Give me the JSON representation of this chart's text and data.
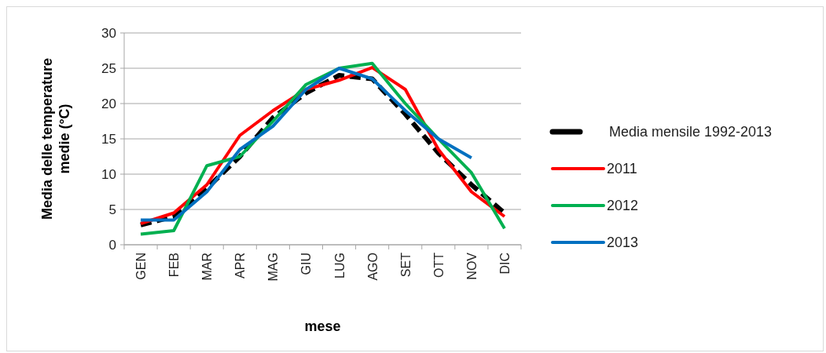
{
  "chart_data": {
    "type": "line",
    "xlabel": "mese",
    "ylabel": "Media delle temperature medie (°C)",
    "categories": [
      "GEN",
      "FEB",
      "MAR",
      "APR",
      "MAG",
      "GIU",
      "LUG",
      "AGO",
      "SET",
      "OTT",
      "NOV",
      "DIC"
    ],
    "ylim": [
      0,
      30
    ],
    "yticks": [
      0,
      5,
      10,
      15,
      20,
      25,
      30
    ],
    "grid": "y",
    "legend": "right",
    "marker": "none",
    "series": [
      {
        "name": "Media mensile 1992-2013",
        "color": "#000000",
        "line_style": "dashed",
        "values": [
          2.8,
          4,
          8,
          12.5,
          18,
          21.5,
          24,
          23.5,
          18.5,
          13,
          8.5,
          4.5
        ]
      },
      {
        "name": "2011",
        "color": "#ff0000",
        "values": [
          3,
          4.5,
          8.5,
          15.5,
          19,
          22,
          23.3,
          25.1,
          22,
          13.5,
          7.5,
          4
        ]
      },
      {
        "name": "2012",
        "color": "#00b050",
        "values": [
          1.5,
          2,
          11.2,
          12.5,
          17.5,
          22.7,
          25,
          25.7,
          20,
          15,
          10.2,
          2.3
        ]
      },
      {
        "name": "2013",
        "color": "#0070c0",
        "values": [
          3.5,
          3.5,
          7.5,
          13.5,
          16.8,
          22,
          25,
          23.5,
          19,
          15,
          12.3,
          null
        ]
      }
    ]
  }
}
